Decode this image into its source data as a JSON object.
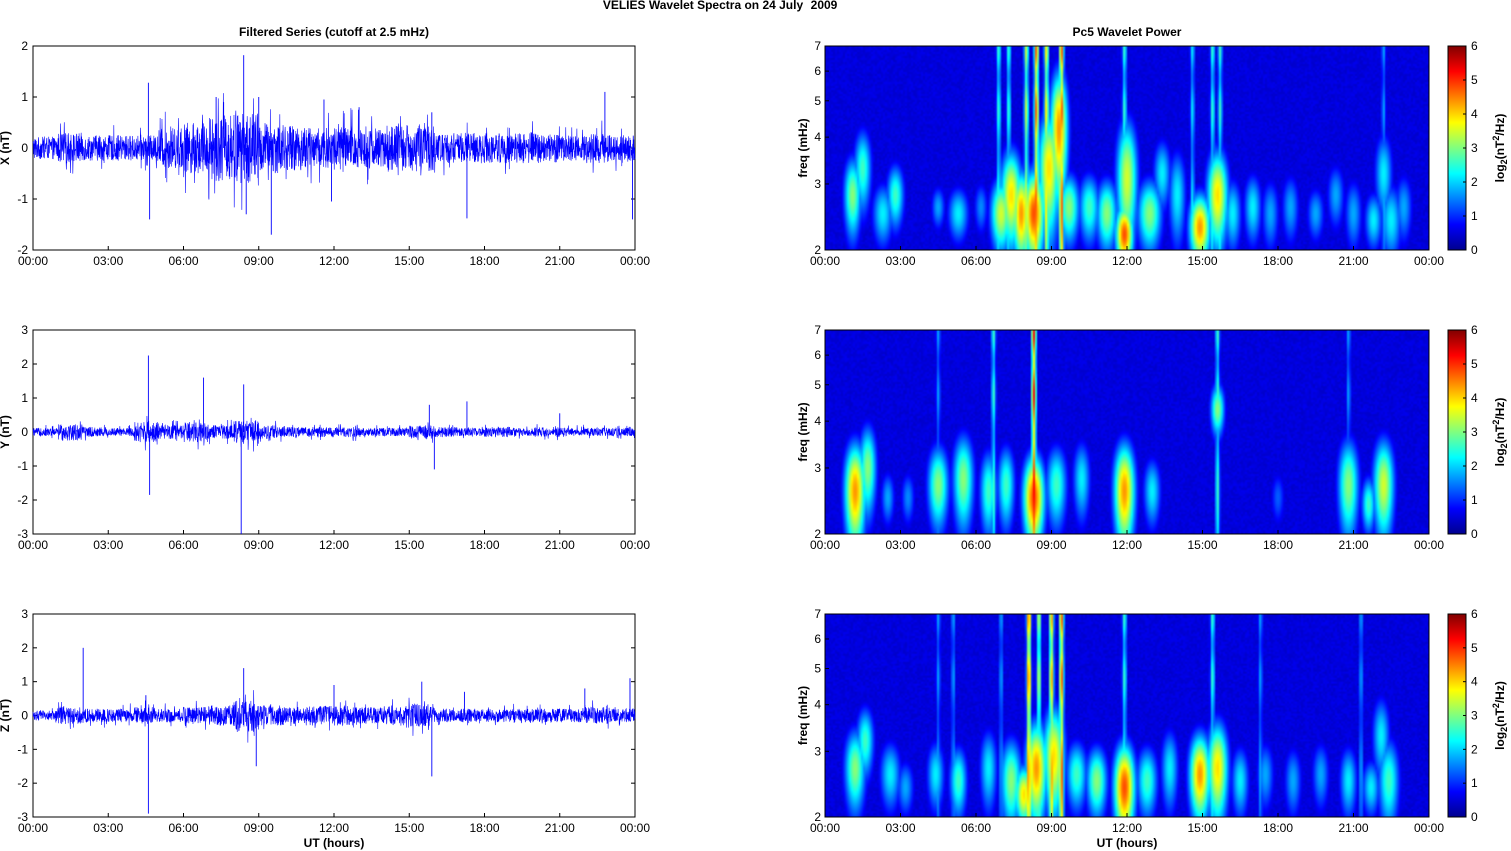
{
  "figure": {
    "title_left": "VELIES Wavelet Spectra on 24 July",
    "title_right": "2009"
  },
  "chart_data": [
    {
      "type": "line",
      "title": "Filtered Series (cutoff at 2.5 mHz)",
      "ylabel": "X (nT)",
      "xlabel": "",
      "xlim": [
        0,
        24
      ],
      "ylim": [
        -2,
        2
      ],
      "xticks": [
        "00:00",
        "03:00",
        "06:00",
        "09:00",
        "12:00",
        "15:00",
        "18:00",
        "21:00",
        "00:00"
      ],
      "yticks": [
        -2,
        -1,
        0,
        1,
        2
      ],
      "color": "#0000ff",
      "noise_profile": [
        0.22,
        0.3,
        0.25,
        0.25,
        0.25,
        0.4,
        0.5,
        0.65,
        0.7,
        0.5,
        0.45,
        0.4,
        0.45,
        0.4,
        0.45,
        0.45,
        0.3,
        0.3,
        0.3,
        0.3,
        0.3,
        0.25,
        0.3,
        0.25
      ],
      "spikes": [
        [
          4.6,
          1.28
        ],
        [
          4.65,
          -1.4
        ],
        [
          7.3,
          1.0
        ],
        [
          7.6,
          0.9
        ],
        [
          8.4,
          1.82
        ],
        [
          8.5,
          -1.3
        ],
        [
          9.0,
          1.0
        ],
        [
          9.5,
          -1.7
        ],
        [
          11.6,
          0.95
        ],
        [
          11.9,
          -1.05
        ],
        [
          13.0,
          0.8
        ],
        [
          15.9,
          0.7
        ],
        [
          17.3,
          -1.38
        ],
        [
          22.8,
          1.1
        ],
        [
          23.9,
          -1.4
        ]
      ]
    },
    {
      "type": "heatmap",
      "title": "Pc5 Wavelet Power",
      "ylabel": "freq (mHz)",
      "xlabel": "",
      "xlim": [
        0,
        24
      ],
      "ylim": [
        2,
        7
      ],
      "yscale": "log",
      "xticks": [
        "00:00",
        "03:00",
        "06:00",
        "09:00",
        "12:00",
        "15:00",
        "18:00",
        "21:00",
        "00:00"
      ],
      "yticks": [
        2,
        3,
        4,
        5,
        6,
        7
      ],
      "colorbar": {
        "label": "log2(nT2/Hz)",
        "ticks": [
          0,
          1,
          2,
          3,
          4,
          5,
          6
        ],
        "range": [
          0,
          6
        ],
        "colormap": "jet"
      },
      "blobs": [
        [
          1.1,
          2.8,
          0.25,
          0.5,
          3.5
        ],
        [
          1.5,
          3.3,
          0.25,
          0.6,
          3.0
        ],
        [
          2.3,
          2.5,
          0.3,
          0.35,
          2.5
        ],
        [
          2.8,
          2.8,
          0.25,
          0.4,
          3.0
        ],
        [
          4.5,
          2.6,
          0.2,
          0.25,
          2.0
        ],
        [
          5.3,
          2.5,
          0.3,
          0.3,
          2.5
        ],
        [
          6.2,
          2.6,
          0.2,
          0.3,
          1.8
        ],
        [
          7.0,
          2.5,
          0.3,
          0.4,
          4.0
        ],
        [
          7.4,
          2.8,
          0.3,
          0.6,
          4.5
        ],
        [
          7.8,
          2.5,
          0.25,
          0.5,
          5.0
        ],
        [
          8.3,
          2.5,
          0.3,
          0.5,
          5.5
        ],
        [
          8.9,
          3.3,
          0.3,
          0.9,
          4.5
        ],
        [
          9.3,
          4.2,
          0.25,
          1.2,
          5.0
        ],
        [
          9.7,
          2.6,
          0.3,
          0.4,
          3.5
        ],
        [
          10.5,
          2.6,
          0.3,
          0.4,
          3.0
        ],
        [
          11.2,
          2.5,
          0.3,
          0.4,
          3.5
        ],
        [
          11.9,
          2.2,
          0.25,
          0.3,
          5.5
        ],
        [
          12.0,
          3.1,
          0.3,
          0.9,
          4.0
        ],
        [
          12.9,
          2.5,
          0.35,
          0.4,
          3.5
        ],
        [
          13.4,
          3.2,
          0.25,
          0.5,
          2.5
        ],
        [
          14.0,
          2.8,
          0.25,
          0.6,
          2.5
        ],
        [
          14.9,
          2.3,
          0.3,
          0.35,
          5.0
        ],
        [
          15.6,
          2.8,
          0.3,
          0.6,
          4.5
        ],
        [
          16.2,
          2.5,
          0.25,
          0.4,
          2.5
        ],
        [
          17.0,
          2.6,
          0.25,
          0.4,
          2.5
        ],
        [
          17.7,
          2.5,
          0.25,
          0.4,
          2.0
        ],
        [
          18.5,
          2.6,
          0.25,
          0.4,
          2.0
        ],
        [
          19.5,
          2.5,
          0.25,
          0.3,
          2.0
        ],
        [
          20.3,
          2.8,
          0.25,
          0.4,
          2.0
        ],
        [
          21.0,
          2.5,
          0.25,
          0.4,
          2.0
        ],
        [
          21.8,
          2.4,
          0.25,
          0.3,
          2.5
        ],
        [
          22.5,
          2.4,
          0.3,
          0.4,
          2.5
        ],
        [
          22.2,
          3.2,
          0.25,
          0.6,
          2.5
        ],
        [
          23.0,
          2.6,
          0.25,
          0.4,
          2.0
        ]
      ],
      "streaks": [
        [
          6.9,
          3.0
        ],
        [
          7.3,
          3.0
        ],
        [
          8.0,
          4.0
        ],
        [
          8.4,
          5.5
        ],
        [
          8.8,
          4.5
        ],
        [
          9.4,
          5.5
        ],
        [
          11.9,
          3.0
        ],
        [
          15.4,
          3.0
        ],
        [
          15.7,
          3.0
        ],
        [
          14.6,
          2.5
        ],
        [
          22.2,
          2.0
        ]
      ]
    },
    {
      "type": "line",
      "title": "",
      "ylabel": "Y (nT)",
      "xlabel": "",
      "xlim": [
        0,
        24
      ],
      "ylim": [
        -3,
        3
      ],
      "xticks": [
        "00:00",
        "03:00",
        "06:00",
        "09:00",
        "12:00",
        "15:00",
        "18:00",
        "21:00",
        "00:00"
      ],
      "yticks": [
        -3,
        -2,
        -1,
        0,
        1,
        2,
        3
      ],
      "color": "#0000ff",
      "noise_profile": [
        0.12,
        0.25,
        0.15,
        0.12,
        0.3,
        0.2,
        0.3,
        0.2,
        0.35,
        0.2,
        0.15,
        0.15,
        0.15,
        0.12,
        0.12,
        0.2,
        0.15,
        0.12,
        0.15,
        0.12,
        0.15,
        0.12,
        0.12,
        0.12
      ],
      "spikes": [
        [
          4.6,
          2.25
        ],
        [
          4.65,
          -1.85
        ],
        [
          6.8,
          1.6
        ],
        [
          8.3,
          -3.0
        ],
        [
          8.4,
          1.4
        ],
        [
          15.8,
          0.8
        ],
        [
          16.0,
          -1.1
        ],
        [
          17.3,
          0.9
        ],
        [
          21.0,
          0.55
        ]
      ]
    },
    {
      "type": "heatmap",
      "title": "",
      "ylabel": "freq (mHz)",
      "xlabel": "",
      "xlim": [
        0,
        24
      ],
      "ylim": [
        2,
        7
      ],
      "yscale": "log",
      "xticks": [
        "00:00",
        "03:00",
        "06:00",
        "09:00",
        "12:00",
        "15:00",
        "18:00",
        "21:00",
        "00:00"
      ],
      "yticks": [
        2,
        3,
        4,
        5,
        6,
        7
      ],
      "colorbar": {
        "label": "log2(nT2/Hz)",
        "ticks": [
          0,
          1,
          2,
          3,
          4,
          5,
          6
        ],
        "range": [
          0,
          6
        ],
        "colormap": "jet"
      },
      "blobs": [
        [
          1.2,
          2.6,
          0.3,
          0.6,
          5.0
        ],
        [
          1.7,
          3.0,
          0.25,
          0.6,
          3.5
        ],
        [
          2.5,
          2.5,
          0.2,
          0.3,
          2.0
        ],
        [
          3.3,
          2.5,
          0.2,
          0.3,
          1.8
        ],
        [
          4.5,
          2.7,
          0.3,
          0.5,
          3.5
        ],
        [
          5.5,
          2.8,
          0.3,
          0.6,
          3.5
        ],
        [
          6.5,
          2.6,
          0.25,
          0.5,
          3.0
        ],
        [
          7.2,
          2.7,
          0.25,
          0.5,
          3.0
        ],
        [
          8.3,
          2.5,
          0.3,
          0.5,
          5.5
        ],
        [
          9.2,
          2.7,
          0.3,
          0.5,
          3.0
        ],
        [
          10.2,
          2.8,
          0.25,
          0.5,
          2.5
        ],
        [
          11.9,
          2.6,
          0.3,
          0.6,
          5.0
        ],
        [
          13.0,
          2.6,
          0.25,
          0.4,
          2.5
        ],
        [
          15.6,
          4.3,
          0.2,
          0.5,
          3.5
        ],
        [
          18.0,
          2.5,
          0.2,
          0.3,
          1.5
        ],
        [
          20.8,
          2.7,
          0.3,
          0.6,
          3.5
        ],
        [
          21.6,
          2.4,
          0.2,
          0.3,
          3.0
        ],
        [
          22.2,
          2.7,
          0.3,
          0.6,
          4.0
        ]
      ],
      "streaks": [
        [
          8.3,
          6.0
        ],
        [
          4.5,
          2.0
        ],
        [
          6.7,
          3.0
        ],
        [
          15.6,
          3.0
        ],
        [
          20.8,
          2.0
        ]
      ]
    },
    {
      "type": "line",
      "title": "",
      "ylabel": "Z (nT)",
      "xlabel": "UT (hours)",
      "xlim": [
        0,
        24
      ],
      "ylim": [
        -3,
        3
      ],
      "xticks": [
        "00:00",
        "03:00",
        "06:00",
        "09:00",
        "12:00",
        "15:00",
        "18:00",
        "21:00",
        "00:00"
      ],
      "yticks": [
        -3,
        -2,
        -1,
        0,
        1,
        2,
        3
      ],
      "color": "#0000ff",
      "noise_profile": [
        0.15,
        0.25,
        0.2,
        0.2,
        0.25,
        0.2,
        0.25,
        0.3,
        0.45,
        0.3,
        0.25,
        0.3,
        0.3,
        0.25,
        0.3,
        0.35,
        0.2,
        0.2,
        0.2,
        0.2,
        0.2,
        0.2,
        0.25,
        0.2
      ],
      "spikes": [
        [
          2.0,
          2.0
        ],
        [
          4.6,
          -2.9
        ],
        [
          4.5,
          0.6
        ],
        [
          8.4,
          1.4
        ],
        [
          8.9,
          -1.5
        ],
        [
          12.0,
          0.9
        ],
        [
          15.5,
          1.0
        ],
        [
          15.9,
          -1.8
        ],
        [
          17.2,
          0.7
        ],
        [
          22.0,
          0.8
        ],
        [
          23.8,
          1.1
        ]
      ]
    },
    {
      "type": "heatmap",
      "title": "",
      "ylabel": "freq (mHz)",
      "xlabel": "UT (hours)",
      "xlim": [
        0,
        24
      ],
      "ylim": [
        2,
        7
      ],
      "yscale": "log",
      "xticks": [
        "00:00",
        "03:00",
        "06:00",
        "09:00",
        "12:00",
        "15:00",
        "18:00",
        "21:00",
        "00:00"
      ],
      "yticks": [
        2,
        3,
        4,
        5,
        6,
        7
      ],
      "colorbar": {
        "label": "log2(nT2/Hz)",
        "ticks": [
          0,
          1,
          2,
          3,
          4,
          5,
          6
        ],
        "range": [
          0,
          6
        ],
        "colormap": "jet"
      },
      "blobs": [
        [
          1.2,
          2.7,
          0.3,
          0.5,
          3.5
        ],
        [
          1.6,
          3.2,
          0.25,
          0.5,
          3.0
        ],
        [
          2.6,
          2.6,
          0.3,
          0.4,
          2.5
        ],
        [
          3.2,
          2.4,
          0.25,
          0.3,
          2.0
        ],
        [
          4.4,
          2.6,
          0.25,
          0.4,
          2.5
        ],
        [
          5.3,
          2.5,
          0.25,
          0.4,
          3.0
        ],
        [
          6.5,
          2.7,
          0.25,
          0.5,
          2.5
        ],
        [
          7.4,
          2.5,
          0.3,
          0.5,
          3.5
        ],
        [
          7.9,
          2.3,
          0.25,
          0.3,
          4.5
        ],
        [
          8.4,
          2.7,
          0.3,
          0.6,
          5.0
        ],
        [
          9.1,
          2.9,
          0.3,
          0.7,
          4.5
        ],
        [
          10.0,
          2.6,
          0.3,
          0.4,
          3.0
        ],
        [
          10.8,
          2.5,
          0.3,
          0.4,
          3.5
        ],
        [
          11.9,
          2.4,
          0.3,
          0.5,
          5.5
        ],
        [
          12.8,
          2.5,
          0.3,
          0.4,
          3.0
        ],
        [
          13.7,
          2.7,
          0.25,
          0.5,
          2.5
        ],
        [
          14.9,
          2.6,
          0.3,
          0.5,
          5.0
        ],
        [
          15.6,
          2.7,
          0.3,
          0.6,
          4.5
        ],
        [
          16.5,
          2.5,
          0.25,
          0.4,
          2.5
        ],
        [
          17.5,
          2.6,
          0.25,
          0.4,
          2.0
        ],
        [
          18.6,
          2.5,
          0.25,
          0.4,
          2.0
        ],
        [
          19.7,
          2.6,
          0.25,
          0.4,
          2.0
        ],
        [
          20.8,
          2.5,
          0.25,
          0.4,
          2.5
        ],
        [
          21.7,
          2.4,
          0.25,
          0.3,
          2.5
        ],
        [
          22.4,
          2.5,
          0.3,
          0.5,
          3.0
        ],
        [
          22.1,
          3.3,
          0.25,
          0.6,
          2.5
        ]
      ],
      "streaks": [
        [
          4.5,
          2.0
        ],
        [
          5.1,
          2.0
        ],
        [
          7.0,
          2.0
        ],
        [
          8.1,
          5.5
        ],
        [
          8.5,
          4.0
        ],
        [
          9.0,
          5.0
        ],
        [
          9.4,
          5.5
        ],
        [
          11.9,
          3.0
        ],
        [
          15.4,
          3.0
        ],
        [
          17.3,
          2.0
        ],
        [
          21.3,
          2.0
        ]
      ]
    }
  ]
}
